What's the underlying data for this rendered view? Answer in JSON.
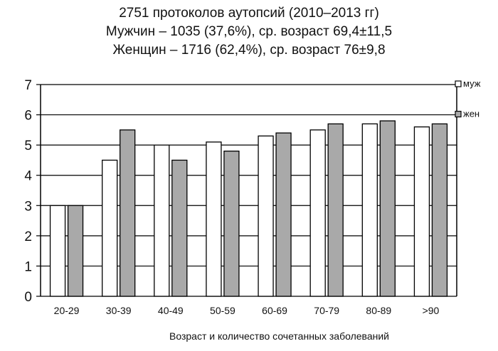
{
  "chart_data": {
    "type": "bar",
    "title_lines": [
      "2751 протоколов аутопсий (2010–2013 гг)",
      "Мужчин – 1035 (37,6%), ср. возраст 69,4±11,5",
      "Женщин – 1716 (62,4%), ср. возраст 76±9,8"
    ],
    "xlabel": "Возраст и количество сочетанных заболеваний",
    "ylabel": "",
    "ylim": [
      0,
      7
    ],
    "yticks": [
      "0",
      "1",
      "2",
      "3",
      "4",
      "5",
      "6",
      "7"
    ],
    "categories": [
      "20-29",
      "30-39",
      "40-49",
      "50-59",
      "60-69",
      "70-79",
      "80-89",
      ">90"
    ],
    "series": [
      {
        "name": "муж",
        "color": "#ffffff",
        "values": [
          3.0,
          4.5,
          5.0,
          5.1,
          5.3,
          5.5,
          5.7,
          5.6
        ]
      },
      {
        "name": "жен",
        "color": "#a9a9a9",
        "values": [
          3.0,
          5.5,
          4.5,
          4.8,
          5.4,
          5.7,
          5.8,
          5.7
        ]
      }
    ],
    "grid": true,
    "legend_position": "right"
  }
}
